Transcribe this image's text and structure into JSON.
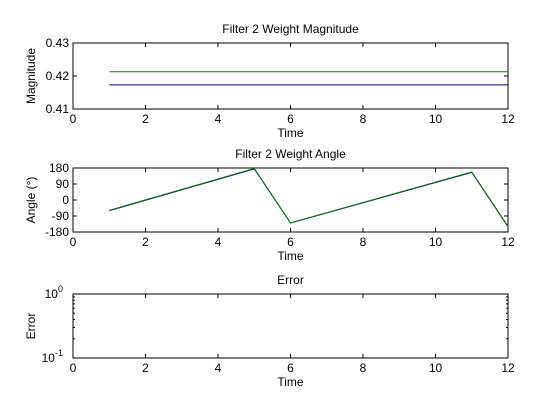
{
  "chart_data": [
    {
      "type": "line",
      "title": "Filter 2 Weight Magnitude",
      "xlabel": "Time",
      "ylabel": "Magnitude",
      "xlim": [
        0,
        12
      ],
      "ylim": [
        0.41,
        0.43
      ],
      "xticks": [
        0,
        2,
        4,
        6,
        8,
        10,
        12
      ],
      "yticks": [
        0.41,
        0.42,
        0.43
      ],
      "ytick_labels": [
        "0.41",
        "0.42",
        "0.43"
      ],
      "grid": false,
      "series": [
        {
          "color": "#000080",
          "x": [
            1,
            12
          ],
          "y": [
            0.4173,
            0.4173
          ]
        },
        {
          "color": "#008000",
          "x": [
            1,
            12
          ],
          "y": [
            0.4213,
            0.4213
          ]
        }
      ]
    },
    {
      "type": "line",
      "title": "Filter 2 Weight Angle",
      "xlabel": "Time",
      "ylabel": "Angle (°)",
      "xlim": [
        0,
        12
      ],
      "ylim": [
        -180,
        180
      ],
      "xticks": [
        0,
        2,
        4,
        6,
        8,
        10,
        12
      ],
      "yticks": [
        -180,
        -90,
        0,
        90,
        180
      ],
      "ytick_labels": [
        "-180",
        "-90",
        "0",
        "90",
        "180"
      ],
      "grid": false,
      "series": [
        {
          "color": "#000080",
          "x": [
            1,
            5,
            6,
            11,
            12
          ],
          "y": [
            -60,
            175,
            -130,
            155,
            -150
          ]
        },
        {
          "color": "#008000",
          "x": [
            1,
            5,
            6,
            11,
            12
          ],
          "y": [
            -58,
            178,
            -128,
            158,
            -148
          ]
        }
      ]
    },
    {
      "type": "line",
      "title": "Error",
      "xlabel": "Time",
      "ylabel": "Error",
      "xlim": [
        0,
        12
      ],
      "ylim": [
        0.1,
        1
      ],
      "yscale": "log",
      "xticks": [
        0,
        2,
        4,
        6,
        8,
        10,
        12
      ],
      "yticks": [
        0.1,
        1
      ],
      "ytick_labels": [
        {
          "base": "10",
          "exp": "-1"
        },
        {
          "base": "10",
          "exp": "0"
        }
      ],
      "grid": false,
      "series": []
    }
  ]
}
